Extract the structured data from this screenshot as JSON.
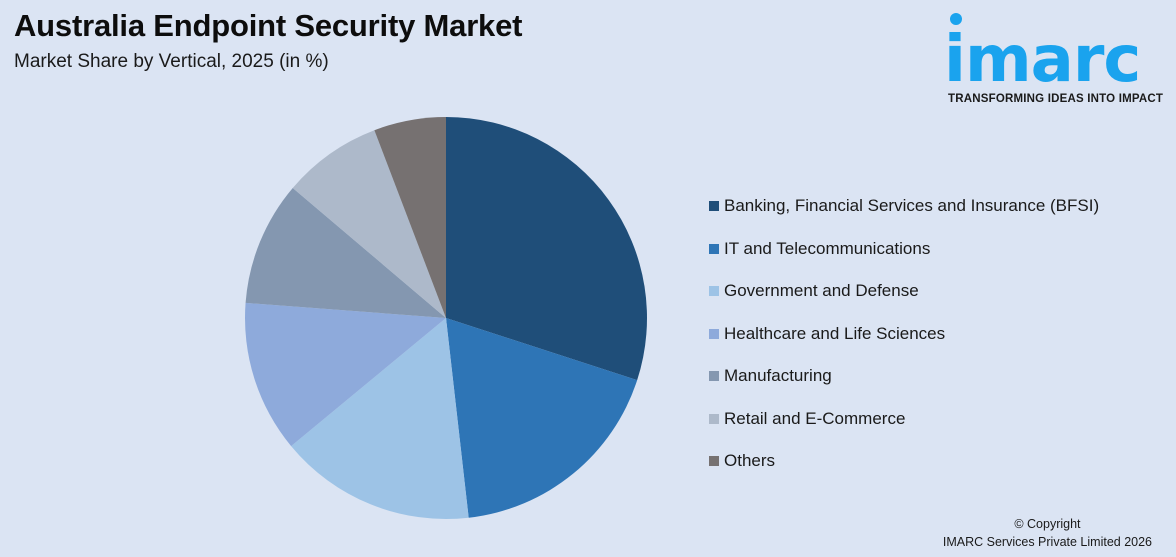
{
  "header": {
    "title": "Australia Endpoint Security Market",
    "subtitle": "Market Share by Vertical, 2025 (in %)"
  },
  "logo": {
    "word": "imarc",
    "tagline": "TRANSFORMING IDEAS INTO IMPACT",
    "color": "#1aa3ee"
  },
  "footer": {
    "line1": "© Copyright",
    "line2": "IMARC Services Private Limited 2026"
  },
  "chart_data": {
    "type": "pie",
    "title": "Australia Endpoint Security Market",
    "subtitle": "Market Share by Vertical, 2025 (in %)",
    "start_angle": "12 o'clock, clockwise",
    "legend_position": "right",
    "data_labels": false,
    "categories": [
      "Banking, Financial Services and Insurance (BFSI)",
      "IT and Telecommunications",
      "Government and Defense",
      "Healthcare and Life Sciences",
      "Manufacturing",
      "Retail and E-Commerce",
      "Others"
    ],
    "values": [
      30.0,
      18.2,
      15.8,
      12.2,
      10.0,
      8.0,
      5.8
    ],
    "colors": [
      "#1f4e79",
      "#2e75b6",
      "#9dc3e6",
      "#8eaadb",
      "#8497b0",
      "#adb9ca",
      "#767171"
    ]
  },
  "legend": {
    "items": [
      {
        "label": "Banking, Financial Services and Insurance (BFSI)",
        "color": "#1f4e79"
      },
      {
        "label": "IT and Telecommunications",
        "color": "#2e75b6"
      },
      {
        "label": "Government and Defense",
        "color": "#9dc3e6"
      },
      {
        "label": "Healthcare and Life Sciences",
        "color": "#8eaadb"
      },
      {
        "label": "Manufacturing",
        "color": "#8497b0"
      },
      {
        "label": "Retail and E-Commerce",
        "color": "#adb9ca"
      },
      {
        "label": "Others",
        "color": "#767171"
      }
    ]
  }
}
